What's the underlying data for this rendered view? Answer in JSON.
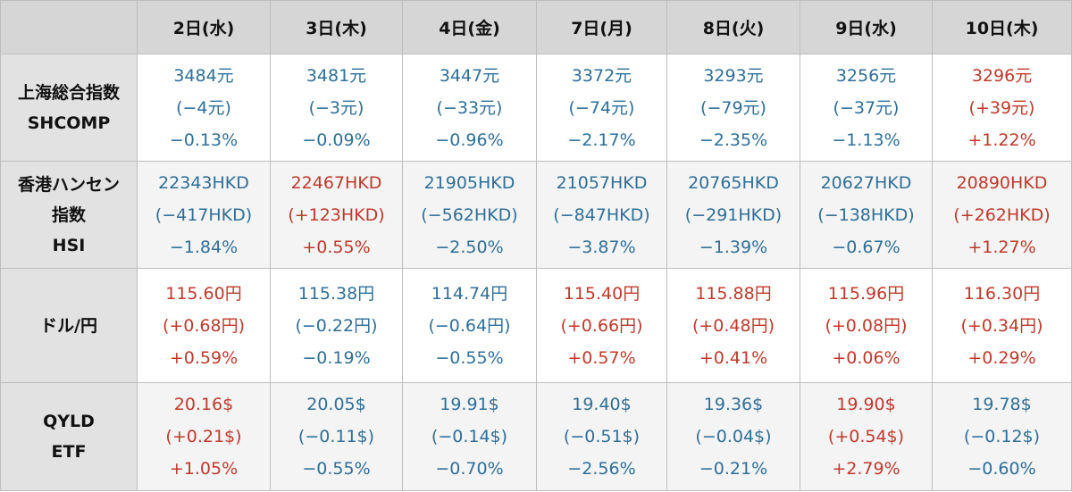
{
  "header": {
    "days": [
      "2日(水)",
      "3日(木)",
      "4日(金)",
      "7日(月)",
      "8日(火)",
      "9日(水)",
      "10日(木)"
    ]
  },
  "rows": [
    {
      "label_lines": [
        "上海総合指数",
        "SHCOMP"
      ],
      "cells": [
        {
          "price": "3484元",
          "change": "(−4元)",
          "pct": "−0.13%",
          "dir": "down"
        },
        {
          "price": "3481元",
          "change": "(−3元)",
          "pct": "−0.09%",
          "dir": "down"
        },
        {
          "price": "3447元",
          "change": "(−33元)",
          "pct": "−0.96%",
          "dir": "down"
        },
        {
          "price": "3372元",
          "change": "(−74元)",
          "pct": "−2.17%",
          "dir": "down"
        },
        {
          "price": "3293元",
          "change": "(−79元)",
          "pct": "−2.35%",
          "dir": "down"
        },
        {
          "price": "3256元",
          "change": "(−37元)",
          "pct": "−1.13%",
          "dir": "down"
        },
        {
          "price": "3296元",
          "change": "(+39元)",
          "pct": "+1.22%",
          "dir": "up"
        }
      ]
    },
    {
      "label_lines": [
        "香港ハンセン",
        "指数",
        "HSI"
      ],
      "cells": [
        {
          "price": "22343HKD",
          "change": "(−417HKD)",
          "pct": "−1.84%",
          "dir": "down"
        },
        {
          "price": "22467HKD",
          "change": "(+123HKD)",
          "pct": "+0.55%",
          "dir": "up"
        },
        {
          "price": "21905HKD",
          "change": "(−562HKD)",
          "pct": "−2.50%",
          "dir": "down"
        },
        {
          "price": "21057HKD",
          "change": "(−847HKD)",
          "pct": "−3.87%",
          "dir": "down"
        },
        {
          "price": "20765HKD",
          "change": "(−291HKD)",
          "pct": "−1.39%",
          "dir": "down"
        },
        {
          "price": "20627HKD",
          "change": "(−138HKD)",
          "pct": "−0.67%",
          "dir": "down"
        },
        {
          "price": "20890HKD",
          "change": "(+262HKD)",
          "pct": "+1.27%",
          "dir": "up"
        }
      ]
    },
    {
      "label_lines": [
        "ドル/円"
      ],
      "cells": [
        {
          "price": "115.60円",
          "change": "(+0.68円)",
          "pct": "+0.59%",
          "dir": "up"
        },
        {
          "price": "115.38円",
          "change": "(−0.22円)",
          "pct": "−0.19%",
          "dir": "down"
        },
        {
          "price": "114.74円",
          "change": "(−0.64円)",
          "pct": "−0.55%",
          "dir": "down"
        },
        {
          "price": "115.40円",
          "change": "(+0.66円)",
          "pct": "+0.57%",
          "dir": "up"
        },
        {
          "price": "115.88円",
          "change": "(+0.48円)",
          "pct": "+0.41%",
          "dir": "up"
        },
        {
          "price": "115.96円",
          "change": "(+0.08円)",
          "pct": "+0.06%",
          "dir": "up"
        },
        {
          "price": "116.30円",
          "change": "(+0.34円)",
          "pct": "+0.29%",
          "dir": "up"
        }
      ]
    },
    {
      "label_lines": [
        "QYLD",
        "ETF"
      ],
      "cells": [
        {
          "price": "20.16$",
          "change": "(+0.21$)",
          "pct": "+1.05%",
          "dir": "up"
        },
        {
          "price": "20.05$",
          "change": "(−0.11$)",
          "pct": "−0.55%",
          "dir": "down"
        },
        {
          "price": "19.91$",
          "change": "(−0.14$)",
          "pct": "−0.70%",
          "dir": "down"
        },
        {
          "price": "19.40$",
          "change": "(−0.51$)",
          "pct": "−2.56%",
          "dir": "down"
        },
        {
          "price": "19.36$",
          "change": "(−0.04$)",
          "pct": "−0.21%",
          "dir": "down"
        },
        {
          "price": "19.90$",
          "change": "(+0.54$)",
          "pct": "+2.79%",
          "dir": "up"
        },
        {
          "price": "19.78$",
          "change": "(−0.12$)",
          "pct": "−0.60%",
          "dir": "down"
        }
      ]
    }
  ],
  "colors": {
    "up": "#c0392b",
    "down": "#2e6f99",
    "header_bg": "#d6d6d6",
    "label_bg": "#e2e2e2"
  }
}
